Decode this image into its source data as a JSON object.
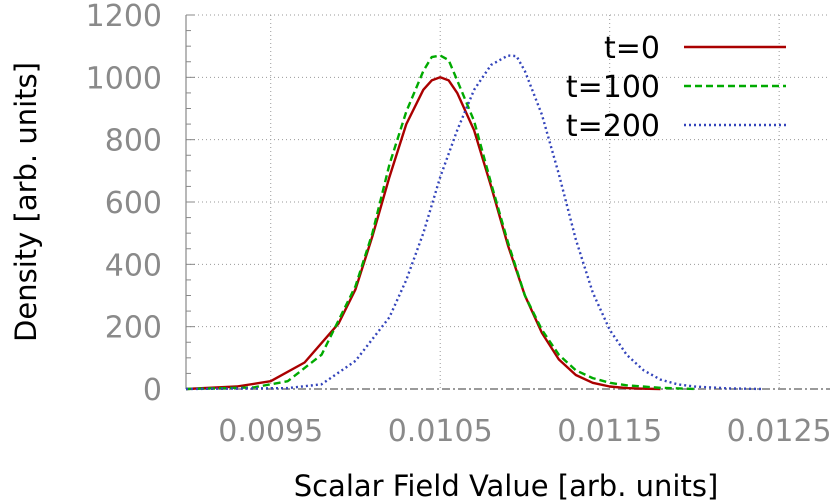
{
  "chart_data": {
    "type": "line",
    "title": "",
    "xlabel": "Scalar Field Value [arb. units]",
    "ylabel": "Density [arb. units]",
    "xlim": [
      0.009,
      0.0128
    ],
    "ylim": [
      0,
      1200
    ],
    "x_ticks": [
      0.0095,
      0.0105,
      0.0115,
      0.0125
    ],
    "x_tick_labels": [
      "0.0095",
      "0.0105",
      "0.0115",
      "0.0125"
    ],
    "y_ticks": [
      0,
      200,
      400,
      600,
      800,
      1000,
      1200
    ],
    "y_tick_labels": [
      "0",
      "200",
      "400",
      "600",
      "800",
      "1000",
      "1200"
    ],
    "grid": true,
    "legend_position": "top-right",
    "series": [
      {
        "name": "t=0",
        "color": "#aa0000",
        "dash": "solid",
        "x": [
          0.009,
          0.0093,
          0.0095,
          0.0097,
          0.0099,
          0.01,
          0.0101,
          0.0102,
          0.0103,
          0.0104,
          0.01045,
          0.0105,
          0.01055,
          0.0106,
          0.0107,
          0.0108,
          0.0109,
          0.011,
          0.0111,
          0.0112,
          0.0113,
          0.0114,
          0.0115,
          0.0116,
          0.0117,
          0.0118
        ],
        "y": [
          0,
          8,
          25,
          85,
          210,
          320,
          490,
          680,
          850,
          960,
          990,
          1000,
          990,
          950,
          830,
          650,
          460,
          300,
          180,
          95,
          45,
          20,
          8,
          3,
          1,
          0
        ]
      },
      {
        "name": "t=100",
        "color": "#00aa00",
        "dash": "dashed",
        "x": [
          0.009,
          0.0094,
          0.0096,
          0.0098,
          0.01,
          0.0101,
          0.0102,
          0.0103,
          0.0104,
          0.01045,
          0.0105,
          0.01055,
          0.0106,
          0.0107,
          0.0108,
          0.0109,
          0.011,
          0.0111,
          0.0112,
          0.0113,
          0.0114,
          0.0115,
          0.0116,
          0.0118,
          0.012
        ],
        "y": [
          0,
          5,
          25,
          110,
          330,
          500,
          720,
          890,
          1020,
          1065,
          1070,
          1055,
          990,
          860,
          660,
          470,
          300,
          190,
          110,
          60,
          35,
          20,
          12,
          4,
          0
        ]
      },
      {
        "name": "t=200",
        "color": "#3344bb",
        "dash": "dotted",
        "x": [
          0.009,
          0.0096,
          0.0098,
          0.01,
          0.0101,
          0.0102,
          0.0103,
          0.0104,
          0.0105,
          0.0106,
          0.0107,
          0.0108,
          0.0109,
          0.01095,
          0.011,
          0.0111,
          0.0112,
          0.0113,
          0.0114,
          0.0115,
          0.0116,
          0.0117,
          0.0118,
          0.0119,
          0.012,
          0.0122,
          0.0124
        ],
        "y": [
          0,
          3,
          15,
          90,
          160,
          230,
          350,
          500,
          680,
          830,
          960,
          1040,
          1070,
          1068,
          1020,
          880,
          690,
          480,
          310,
          190,
          110,
          60,
          30,
          15,
          8,
          2,
          0
        ]
      }
    ]
  }
}
